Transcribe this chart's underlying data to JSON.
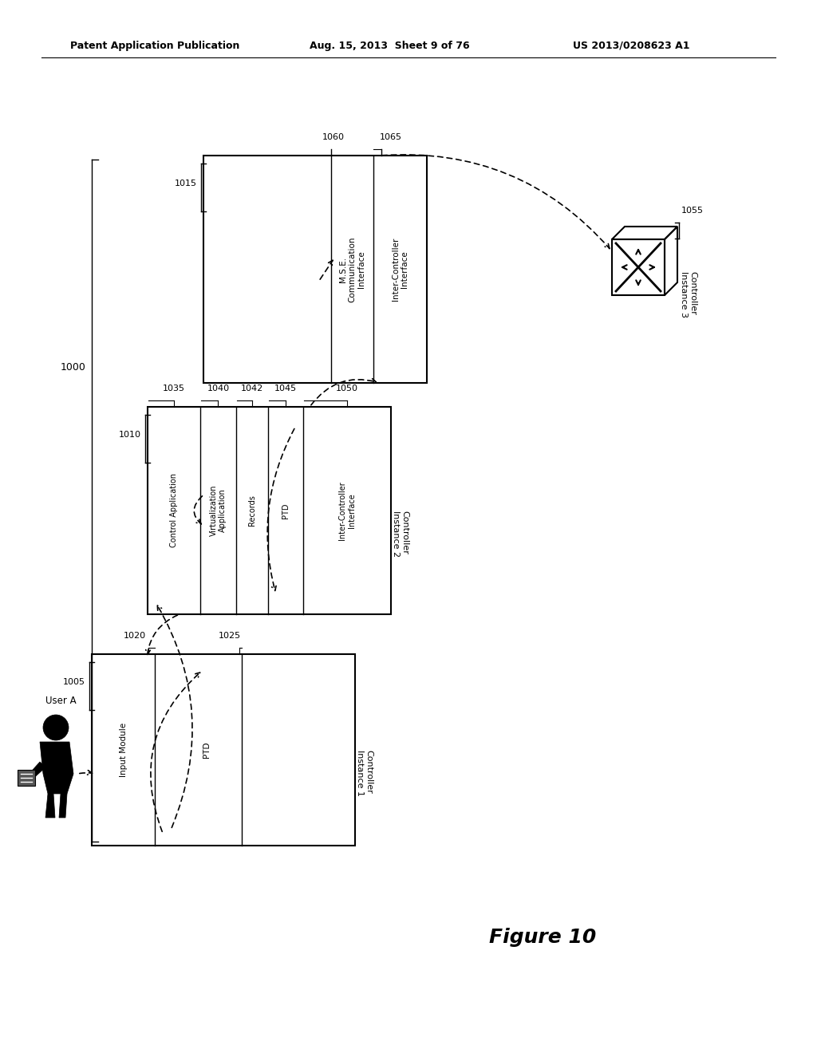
{
  "bg_color": "#ffffff",
  "header_left": "Patent Application Publication",
  "header_center": "Aug. 15, 2013  Sheet 9 of 76",
  "header_right": "US 2013/0208623 A1",
  "figure_label": "Figure 10",
  "label_1000": "1000",
  "label_1015": "1015",
  "label_1060": "1060",
  "label_1065": "1065",
  "label_1055": "1055",
  "label_ctrl3": "Controller\nInstance 3",
  "label_mse_comm": "M.S.E.\nCommunication\nInterface",
  "label_inter_ctrl_top": "Inter-Controller\nInterface",
  "label_1010": "1010",
  "label_1035": "1035",
  "label_1040": "1040",
  "label_1042": "1042",
  "label_1045": "1045",
  "label_1050": "1050",
  "label_ctrl2": "Controller\nInstance 2",
  "label_ctrl_app": "Control Application",
  "label_virt_app": "Virtualization\nApplication",
  "label_records": "Records",
  "label_ptd_mid": "PTD",
  "label_inter_ctrl_mid": "Inter-Controller\nInterface",
  "label_1005": "1005",
  "label_1020": "1020",
  "label_1025": "1025",
  "label_ctrl1": "Controller\nInstance 1",
  "label_input_mod": "Input Module",
  "label_ptd_bot": "PTD",
  "label_userA": "User A"
}
